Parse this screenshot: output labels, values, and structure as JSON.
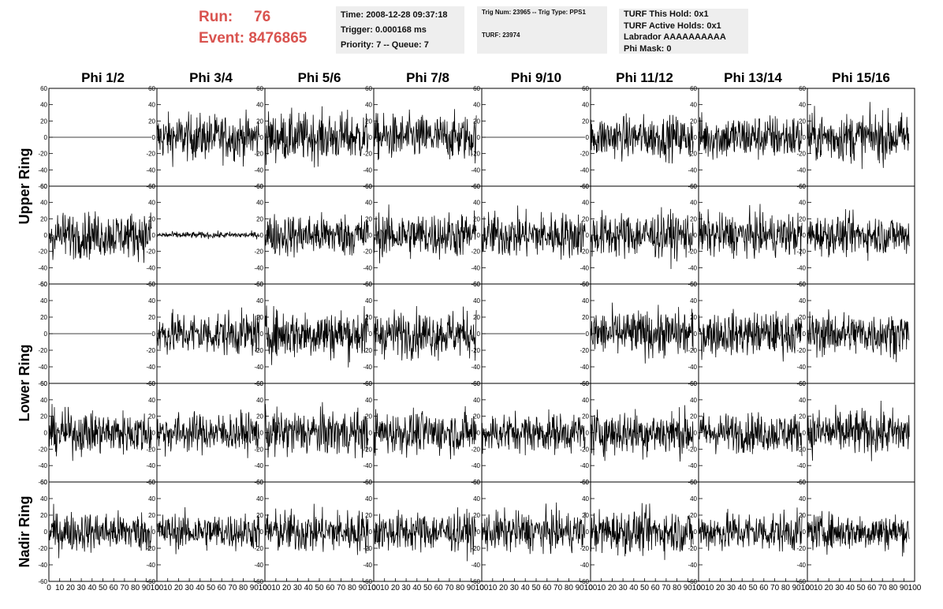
{
  "header": {
    "run_label": "Run:",
    "run_value": "76",
    "event_label": "Event:",
    "event_value": "8476865",
    "time": "Time: 2008-12-28 09:37:18",
    "trigger": "Trigger: 0.000168 ms",
    "priority": "Priority: 7 -- Queue: 7",
    "trig_num": "Trig Num: 23965 -- Trig Type: PPS1",
    "turf": "TURF: 23974",
    "turf_this_hold": "TURF This Hold: 0x1",
    "turf_active_holds": "TURF Active Holds: 0x1",
    "labrador": "Labrador AAAAAAAAAA",
    "phi_mask": "Phi Mask: 0"
  },
  "colors": {
    "trace": "#000000",
    "header_accent": "#d9534f",
    "info_bg": "#eeeeee"
  },
  "chart_data": {
    "type": "line",
    "columns": [
      "Phi 1/2",
      "Phi 3/4",
      "Phi 5/6",
      "Phi 7/8",
      "Phi 9/10",
      "Phi 11/12",
      "Phi 13/14",
      "Phi 15/16"
    ],
    "row_groups": [
      {
        "label": "Upper Ring",
        "rows": [
          0,
          1
        ]
      },
      {
        "label": "Lower Ring",
        "rows": [
          2,
          3
        ]
      },
      {
        "label": "Nadir Ring",
        "rows": [
          4
        ]
      }
    ],
    "xlim": [
      0,
      100
    ],
    "ylim": [
      -60,
      60
    ],
    "x_ticks": [
      "0",
      "10",
      "20",
      "30",
      "40",
      "50",
      "60",
      "70",
      "80",
      "90",
      "100"
    ],
    "y_ticks": [
      "-60",
      "-40",
      "-20",
      "0",
      "20",
      "40",
      "60"
    ],
    "samples_per_trace": 260,
    "trace_amplitude": [
      [
        0,
        14,
        15,
        14,
        0,
        13,
        14,
        15
      ],
      [
        14,
        2,
        13,
        14,
        14,
        14,
        13,
        12
      ],
      [
        0,
        13,
        15,
        14,
        0,
        14,
        13,
        13
      ],
      [
        13,
        12,
        14,
        13,
        12,
        14,
        12,
        14
      ],
      [
        12,
        11,
        13,
        12,
        12,
        13,
        12,
        11
      ]
    ]
  }
}
